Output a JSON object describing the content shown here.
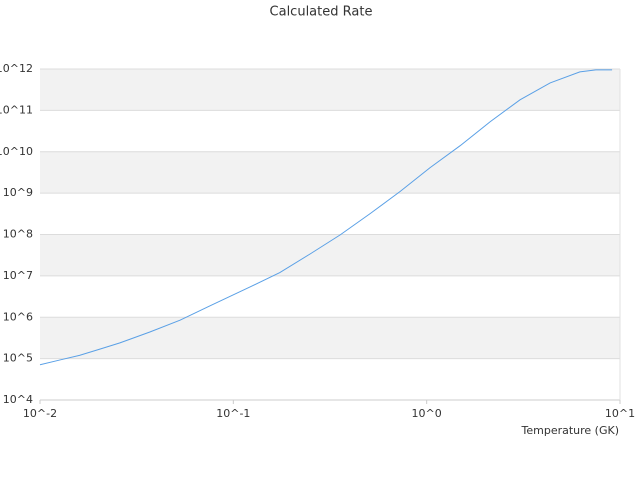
{
  "chart_data": {
    "type": "line",
    "title": "Calculated Rate",
    "xlabel": "Temperature (GK)",
    "xscale": "log",
    "yscale": "log",
    "grid": true,
    "xlim": [
      0.01,
      10
    ],
    "ylim": [
      10000,
      1000000000000
    ],
    "xticks": [
      {
        "value": 0.01,
        "label": "10^-2"
      },
      {
        "value": 0.1,
        "label": "10^-1"
      },
      {
        "value": 1,
        "label": "10^0"
      },
      {
        "value": 10,
        "label": "10^1"
      }
    ],
    "yticks": [
      {
        "value": 10000,
        "label": "10^4"
      },
      {
        "value": 100000,
        "label": "10^5"
      },
      {
        "value": 1000000,
        "label": "10^6"
      },
      {
        "value": 10000000,
        "label": "10^7"
      },
      {
        "value": 100000000,
        "label": "10^8"
      },
      {
        "value": 1000000000,
        "label": "10^9"
      },
      {
        "value": 10000000000,
        "label": "10^10"
      },
      {
        "value": 100000000000,
        "label": "10^11"
      },
      {
        "value": 1000000000000,
        "label": "10^12"
      }
    ],
    "x": [
      0.01,
      0.0127,
      0.016,
      0.0204,
      0.0259,
      0.037,
      0.053,
      0.076,
      0.122,
      0.174,
      0.25,
      0.357,
      0.51,
      0.73,
      1.04,
      1.49,
      2.13,
      3.04,
      4.35,
      6.2,
      7.5,
      9.1
    ],
    "series": [
      {
        "color": "#5aa0e6",
        "values": [
          71000,
          93000,
          120000,
          170000,
          240000,
          440000,
          850000,
          1900000,
          5400000,
          12000000,
          34000000,
          98000000,
          320000000,
          1100000000,
          4100000000,
          14000000000,
          53000000000,
          180000000000,
          460000000000,
          850000000000,
          950000000000,
          950000000000
        ]
      }
    ]
  }
}
